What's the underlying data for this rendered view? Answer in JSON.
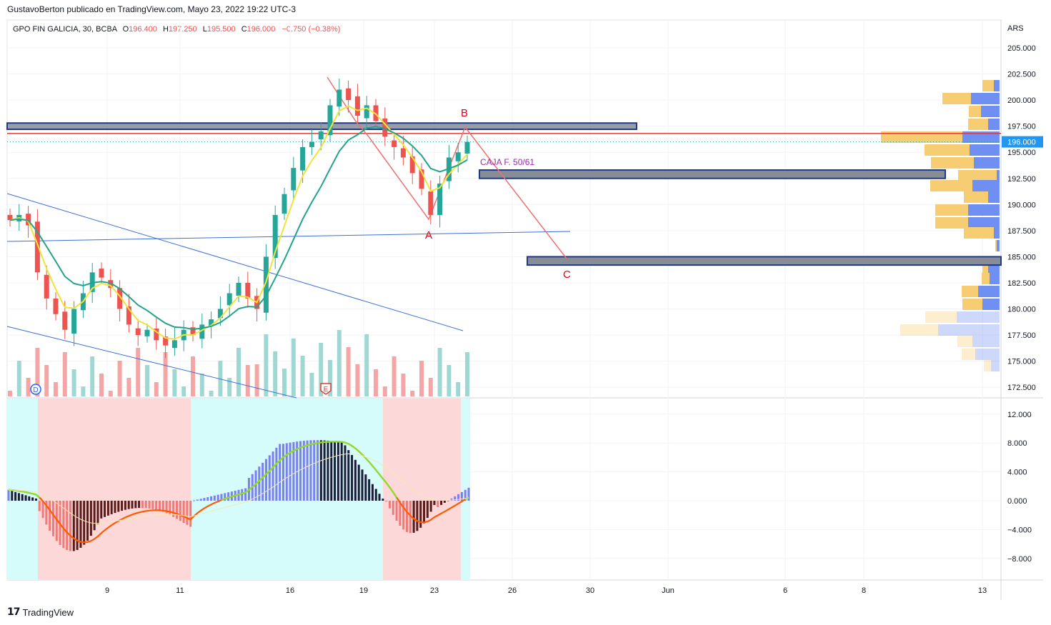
{
  "header": {
    "published_by": "GustavoBerton publicado en TradingView.com, Mayo 23, 2022 19:22 UTC-3"
  },
  "legend": {
    "symbol": "GPO FIN GALICIA, 30, BCBA",
    "open_label": "O",
    "open": "196.400",
    "high_label": "H",
    "high": "197.250",
    "low_label": "L",
    "low": "195.500",
    "close_label": "C",
    "close": "196.000",
    "change": "−0.750 (−0.38%)"
  },
  "currency": "ARS",
  "brand": {
    "logo": "17",
    "name": "TradingView"
  },
  "colors": {
    "up": "#26a69a",
    "down": "#ef5350",
    "vol_up": "#9fd8d2",
    "vol_down": "#f4a6a6",
    "ema_fast": "#f2e23a",
    "ema_slow": "#22a38a",
    "trendline": "#3b6fd8",
    "abc": "#f07070",
    "resistance": "#e53935",
    "box_fill": "#888c94",
    "box_border": "#1e3a8a",
    "vp_up": "#6f8ff2",
    "vp_down": "#f6cd72",
    "price_tag": "#2196f3",
    "osc_bg_up": "#d5fbfb",
    "osc_bg_down": "#fdd8d8"
  },
  "chart_data": [
    {
      "type": "candlestick",
      "title": "GPO FIN GALICIA, 30, BCBA",
      "yaxis_ticks": [
        "205.000",
        "202.500",
        "200.000",
        "197.500",
        "195.000",
        "192.500",
        "190.000",
        "187.500",
        "185.000",
        "182.500",
        "180.000",
        "177.500",
        "175.000",
        "172.500"
      ],
      "ylim": [
        172.5,
        205.0
      ],
      "last_price": "196.000",
      "x_ticks": [
        "9",
        "11",
        "16",
        "19",
        "23",
        "26",
        "30",
        "Jun",
        "6",
        "8",
        "13"
      ],
      "ohlc_closes_approx": [
        188.5,
        189.0,
        188.0,
        183.5,
        181.0,
        179.5,
        178.0,
        180.0,
        181.5,
        183.5,
        183.0,
        182.0,
        180.0,
        178.5,
        177.5,
        178.0,
        177.0,
        176.5,
        177.0,
        178.0,
        177.5,
        178.5,
        179.0,
        180.0,
        181.5,
        182.5,
        181.0,
        180.0,
        185.0,
        189.0,
        191.0,
        193.5,
        195.5,
        196.0,
        197.0,
        199.5,
        201.0,
        200.0,
        198.5,
        199.5,
        198.0,
        196.5,
        195.5,
        194.5,
        193.0,
        191.5,
        189.0,
        192.0,
        194.5,
        195.0,
        196.0
      ],
      "annotations": {
        "point_a": "A",
        "point_b": "B",
        "point_c": "C",
        "box_label": "CAJA F. 50/61",
        "box1_range": [
          192.5,
          193.3
        ],
        "box2_range": [
          184.2,
          185.0
        ],
        "resistance_zone": [
          197.2,
          197.8
        ],
        "resistance_line": 196.8
      },
      "events": [
        "D",
        "E"
      ]
    },
    {
      "type": "bar",
      "title": "",
      "yaxis_ticks": [
        "12.000",
        "8.000",
        "4.000",
        "0.000",
        "−4.000",
        "−8.000"
      ],
      "ylim": [
        -9.5,
        13.0
      ]
    }
  ]
}
